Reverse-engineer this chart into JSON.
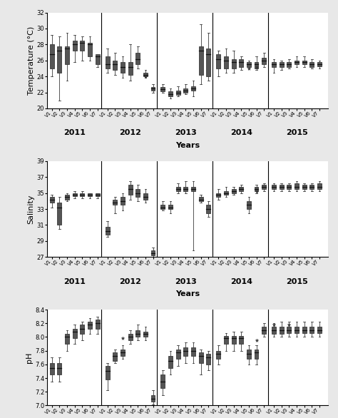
{
  "years": [
    "2011",
    "2012",
    "2013",
    "2014",
    "2015"
  ],
  "stations": [
    "V1",
    "V2",
    "V3",
    "V4",
    "V5",
    "V6",
    "V7"
  ],
  "temperature": {
    "ylabel": "Temperature (°C)",
    "ylim": [
      20,
      32
    ],
    "yticks": [
      20,
      22,
      24,
      26,
      28,
      30,
      32
    ],
    "boxes": [
      {
        "med": 26.8,
        "q1": 25.0,
        "q3": 28.0,
        "whislo": 24.0,
        "whishi": 29.2,
        "fliers": []
      },
      {
        "med": 27.2,
        "q1": 24.5,
        "q3": 27.8,
        "whislo": 21.0,
        "whishi": 29.0,
        "fliers": []
      },
      {
        "med": 27.5,
        "q1": 25.5,
        "q3": 27.8,
        "whislo": 23.5,
        "whishi": 29.5,
        "fliers": []
      },
      {
        "med": 28.0,
        "q1": 27.2,
        "q3": 28.5,
        "whislo": 25.8,
        "whishi": 29.2,
        "fliers": []
      },
      {
        "med": 28.2,
        "q1": 27.2,
        "q3": 28.5,
        "whislo": 26.0,
        "whishi": 29.0,
        "fliers": []
      },
      {
        "med": 28.0,
        "q1": 26.5,
        "q3": 28.2,
        "whislo": 26.0,
        "whishi": 29.0,
        "fliers": []
      },
      {
        "med": 26.5,
        "q1": 25.5,
        "q3": 26.8,
        "whislo": 25.2,
        "whishi": 26.2,
        "fliers": []
      },
      {
        "med": 25.5,
        "q1": 25.0,
        "q3": 26.5,
        "whislo": 24.5,
        "whishi": 27.5,
        "fliers": []
      },
      {
        "med": 25.5,
        "q1": 24.8,
        "q3": 26.0,
        "whislo": 24.2,
        "whishi": 27.0,
        "fliers": []
      },
      {
        "med": 25.2,
        "q1": 24.5,
        "q3": 25.8,
        "whislo": 23.8,
        "whishi": 26.5,
        "fliers": []
      },
      {
        "med": 25.2,
        "q1": 24.2,
        "q3": 25.8,
        "whislo": 23.5,
        "whishi": 28.0,
        "fliers": []
      },
      {
        "med": 26.2,
        "q1": 25.5,
        "q3": 27.0,
        "whislo": 25.0,
        "whishi": 27.8,
        "fliers": []
      },
      {
        "med": 24.2,
        "q1": 24.0,
        "q3": 24.5,
        "whislo": 23.8,
        "whishi": 24.8,
        "fliers": [
          24.0
        ]
      },
      {
        "med": 22.5,
        "q1": 22.2,
        "q3": 22.7,
        "whislo": 22.0,
        "whishi": 23.0,
        "fliers": []
      },
      {
        "med": 22.4,
        "q1": 22.1,
        "q3": 22.7,
        "whislo": 22.0,
        "whishi": 23.0,
        "fliers": []
      },
      {
        "med": 21.8,
        "q1": 21.5,
        "q3": 22.1,
        "whislo": 21.2,
        "whishi": 22.5,
        "fliers": []
      },
      {
        "med": 22.0,
        "q1": 21.7,
        "q3": 22.2,
        "whislo": 21.5,
        "whishi": 22.8,
        "fliers": []
      },
      {
        "med": 22.2,
        "q1": 22.0,
        "q3": 22.5,
        "whislo": 21.8,
        "whishi": 23.0,
        "fliers": []
      },
      {
        "med": 22.5,
        "q1": 22.2,
        "q3": 22.8,
        "whislo": 21.5,
        "whishi": 23.5,
        "fliers": []
      },
      {
        "med": 27.2,
        "q1": 24.2,
        "q3": 27.8,
        "whislo": 23.0,
        "whishi": 30.5,
        "fliers": []
      },
      {
        "med": 26.8,
        "q1": 24.0,
        "q3": 27.5,
        "whislo": 23.5,
        "whishi": 29.5,
        "fliers": []
      },
      {
        "med": 26.2,
        "q1": 25.0,
        "q3": 26.8,
        "whislo": 24.0,
        "whishi": 27.2,
        "fliers": []
      },
      {
        "med": 26.0,
        "q1": 25.0,
        "q3": 26.5,
        "whislo": 24.5,
        "whishi": 27.5,
        "fliers": []
      },
      {
        "med": 25.8,
        "q1": 25.0,
        "q3": 26.2,
        "whislo": 24.5,
        "whishi": 27.2,
        "fliers": []
      },
      {
        "med": 25.8,
        "q1": 25.2,
        "q3": 26.2,
        "whislo": 24.8,
        "whishi": 26.5,
        "fliers": []
      },
      {
        "med": 25.5,
        "q1": 25.2,
        "q3": 25.8,
        "whislo": 25.0,
        "whishi": 26.0,
        "fliers": [
          25.0
        ]
      },
      {
        "med": 25.5,
        "q1": 25.0,
        "q3": 25.8,
        "whislo": 24.8,
        "whishi": 26.5,
        "fliers": [
          25.2
        ]
      },
      {
        "med": 26.0,
        "q1": 25.5,
        "q3": 26.3,
        "whislo": 25.2,
        "whishi": 27.0,
        "fliers": []
      },
      {
        "med": 25.5,
        "q1": 25.2,
        "q3": 25.8,
        "whislo": 24.5,
        "whishi": 26.2,
        "fliers": []
      },
      {
        "med": 25.5,
        "q1": 25.2,
        "q3": 25.8,
        "whislo": 24.8,
        "whishi": 26.0,
        "fliers": []
      },
      {
        "med": 25.5,
        "q1": 25.2,
        "q3": 25.8,
        "whislo": 25.0,
        "whishi": 26.2,
        "fliers": []
      },
      {
        "med": 25.8,
        "q1": 25.5,
        "q3": 26.0,
        "whislo": 25.2,
        "whishi": 26.5,
        "fliers": []
      },
      {
        "med": 25.8,
        "q1": 25.5,
        "q3": 26.0,
        "whislo": 25.2,
        "whishi": 26.5,
        "fliers": []
      },
      {
        "med": 25.5,
        "q1": 25.2,
        "q3": 25.8,
        "whislo": 25.0,
        "whishi": 26.2,
        "fliers": []
      },
      {
        "med": 25.5,
        "q1": 25.3,
        "q3": 25.8,
        "whislo": 25.0,
        "whishi": 26.0,
        "fliers": []
      }
    ]
  },
  "salinity": {
    "ylabel": "Salinity",
    "ylim": [
      27,
      39
    ],
    "yticks": [
      27,
      29,
      31,
      33,
      35,
      37,
      39
    ],
    "boxes": [
      {
        "med": 34.2,
        "q1": 33.8,
        "q3": 34.5,
        "whislo": 33.2,
        "whishi": 34.8,
        "fliers": []
      },
      {
        "med": 33.2,
        "q1": 31.0,
        "q3": 33.8,
        "whislo": 30.5,
        "whishi": 34.5,
        "fliers": []
      },
      {
        "med": 34.5,
        "q1": 34.2,
        "q3": 34.8,
        "whislo": 34.0,
        "whishi": 35.0,
        "fliers": []
      },
      {
        "med": 34.8,
        "q1": 34.6,
        "q3": 35.0,
        "whislo": 34.3,
        "whishi": 35.2,
        "fliers": []
      },
      {
        "med": 34.8,
        "q1": 34.6,
        "q3": 35.0,
        "whislo": 34.3,
        "whishi": 35.2,
        "fliers": []
      },
      {
        "med": 34.8,
        "q1": 34.6,
        "q3": 35.0,
        "whislo": 34.3,
        "whishi": 35.0,
        "fliers": []
      },
      {
        "med": 34.8,
        "q1": 34.6,
        "q3": 35.0,
        "whislo": 34.3,
        "whishi": 35.0,
        "fliers": []
      },
      {
        "med": 30.2,
        "q1": 29.8,
        "q3": 30.8,
        "whislo": 29.5,
        "whishi": 31.5,
        "fliers": []
      },
      {
        "med": 33.8,
        "q1": 33.5,
        "q3": 34.2,
        "whislo": 32.5,
        "whishi": 34.5,
        "fliers": []
      },
      {
        "med": 34.0,
        "q1": 33.5,
        "q3": 34.5,
        "whislo": 32.8,
        "whishi": 35.0,
        "fliers": []
      },
      {
        "med": 35.5,
        "q1": 34.8,
        "q3": 36.0,
        "whislo": 34.2,
        "whishi": 36.5,
        "fliers": []
      },
      {
        "med": 35.0,
        "q1": 34.5,
        "q3": 35.5,
        "whislo": 34.0,
        "whishi": 36.0,
        "fliers": []
      },
      {
        "med": 34.5,
        "q1": 34.2,
        "q3": 35.0,
        "whislo": 33.8,
        "whishi": 35.5,
        "fliers": []
      },
      {
        "med": 27.5,
        "q1": 27.2,
        "q3": 27.8,
        "whislo": 27.0,
        "whishi": 28.2,
        "fliers": []
      },
      {
        "med": 33.2,
        "q1": 33.0,
        "q3": 33.5,
        "whislo": 32.8,
        "whishi": 34.0,
        "fliers": []
      },
      {
        "med": 33.2,
        "q1": 33.0,
        "q3": 33.5,
        "whislo": 32.5,
        "whishi": 34.0,
        "fliers": []
      },
      {
        "med": 35.5,
        "q1": 35.2,
        "q3": 35.8,
        "whislo": 35.0,
        "whishi": 36.2,
        "fliers": []
      },
      {
        "med": 35.5,
        "q1": 35.2,
        "q3": 35.8,
        "whislo": 35.0,
        "whishi": 36.5,
        "fliers": []
      },
      {
        "med": 35.5,
        "q1": 35.2,
        "q3": 35.8,
        "whislo": 27.8,
        "whishi": 36.5,
        "fliers": []
      },
      {
        "med": 34.2,
        "q1": 34.0,
        "q3": 34.5,
        "whislo": 33.8,
        "whishi": 34.8,
        "fliers": []
      },
      {
        "med": 33.0,
        "q1": 32.5,
        "q3": 33.5,
        "whislo": 32.0,
        "whishi": 34.0,
        "fliers": []
      },
      {
        "med": 34.8,
        "q1": 34.5,
        "q3": 35.0,
        "whislo": 34.2,
        "whishi": 35.5,
        "fliers": []
      },
      {
        "med": 35.0,
        "q1": 34.8,
        "q3": 35.2,
        "whislo": 34.5,
        "whishi": 35.8,
        "fliers": []
      },
      {
        "med": 35.2,
        "q1": 35.0,
        "q3": 35.5,
        "whislo": 34.8,
        "whishi": 35.8,
        "fliers": []
      },
      {
        "med": 35.5,
        "q1": 35.2,
        "q3": 35.8,
        "whislo": 35.0,
        "whishi": 36.0,
        "fliers": []
      },
      {
        "med": 33.5,
        "q1": 33.0,
        "q3": 34.0,
        "whislo": 32.5,
        "whishi": 34.5,
        "fliers": []
      },
      {
        "med": 35.5,
        "q1": 35.2,
        "q3": 35.8,
        "whislo": 35.0,
        "whishi": 36.0,
        "fliers": [
          35.2
        ]
      },
      {
        "med": 35.8,
        "q1": 35.5,
        "q3": 36.0,
        "whislo": 35.2,
        "whishi": 36.2,
        "fliers": []
      },
      {
        "med": 35.8,
        "q1": 35.5,
        "q3": 36.0,
        "whislo": 35.2,
        "whishi": 36.2,
        "fliers": []
      },
      {
        "med": 35.8,
        "q1": 35.5,
        "q3": 36.0,
        "whislo": 35.2,
        "whishi": 36.2,
        "fliers": []
      },
      {
        "med": 35.8,
        "q1": 35.5,
        "q3": 36.0,
        "whislo": 35.2,
        "whishi": 36.2,
        "fliers": []
      },
      {
        "med": 35.8,
        "q1": 35.5,
        "q3": 36.2,
        "whislo": 35.2,
        "whishi": 36.5,
        "fliers": []
      },
      {
        "med": 35.8,
        "q1": 35.5,
        "q3": 36.0,
        "whislo": 35.2,
        "whishi": 36.2,
        "fliers": []
      },
      {
        "med": 35.8,
        "q1": 35.5,
        "q3": 36.0,
        "whislo": 35.2,
        "whishi": 36.2,
        "fliers": []
      },
      {
        "med": 35.8,
        "q1": 35.5,
        "q3": 36.2,
        "whislo": 35.2,
        "whishi": 36.5,
        "fliers": []
      }
    ]
  },
  "ph": {
    "ylabel": "pH",
    "ylim": [
      7.0,
      8.4
    ],
    "yticks": [
      7.0,
      7.2,
      7.4,
      7.6,
      7.8,
      8.0,
      8.2,
      8.4
    ],
    "boxes": [
      {
        "med": 7.55,
        "q1": 7.45,
        "q3": 7.62,
        "whislo": 7.35,
        "whishi": 7.7,
        "fliers": []
      },
      {
        "med": 7.55,
        "q1": 7.45,
        "q3": 7.62,
        "whislo": 7.35,
        "whishi": 7.7,
        "fliers": []
      },
      {
        "med": 8.0,
        "q1": 7.9,
        "q3": 8.05,
        "whislo": 7.8,
        "whishi": 8.1,
        "fliers": []
      },
      {
        "med": 8.08,
        "q1": 7.98,
        "q3": 8.12,
        "whislo": 7.9,
        "whishi": 8.18,
        "fliers": []
      },
      {
        "med": 8.12,
        "q1": 8.05,
        "q3": 8.18,
        "whislo": 7.95,
        "whishi": 8.22,
        "fliers": []
      },
      {
        "med": 8.18,
        "q1": 8.12,
        "q3": 8.22,
        "whislo": 8.05,
        "whishi": 8.28,
        "fliers": []
      },
      {
        "med": 8.2,
        "q1": 8.12,
        "q3": 8.25,
        "whislo": 8.05,
        "whishi": 8.3,
        "fliers": []
      },
      {
        "med": 7.5,
        "q1": 7.38,
        "q3": 7.58,
        "whislo": 7.22,
        "whishi": 7.62,
        "fliers": []
      },
      {
        "med": 7.72,
        "q1": 7.65,
        "q3": 7.78,
        "whislo": 7.62,
        "whishi": 7.82,
        "fliers": []
      },
      {
        "med": 7.78,
        "q1": 7.72,
        "q3": 7.82,
        "whislo": 7.68,
        "whishi": 7.88,
        "fliers": [
          7.98
        ]
      },
      {
        "med": 8.0,
        "q1": 7.95,
        "q3": 8.05,
        "whislo": 7.9,
        "whishi": 8.1,
        "fliers": []
      },
      {
        "med": 8.05,
        "q1": 8.0,
        "q3": 8.1,
        "whislo": 7.95,
        "whishi": 8.18,
        "fliers": []
      },
      {
        "med": 8.05,
        "q1": 8.0,
        "q3": 8.08,
        "whislo": 7.95,
        "whishi": 8.15,
        "fliers": []
      },
      {
        "med": 7.1,
        "q1": 7.06,
        "q3": 7.15,
        "whislo": 7.02,
        "whishi": 7.22,
        "fliers": []
      },
      {
        "med": 7.35,
        "q1": 7.25,
        "q3": 7.45,
        "whislo": 7.15,
        "whishi": 7.52,
        "fliers": []
      },
      {
        "med": 7.65,
        "q1": 7.55,
        "q3": 7.72,
        "whislo": 7.45,
        "whishi": 7.8,
        "fliers": []
      },
      {
        "med": 7.78,
        "q1": 7.68,
        "q3": 7.82,
        "whislo": 7.58,
        "whishi": 7.88,
        "fliers": []
      },
      {
        "med": 7.8,
        "q1": 7.72,
        "q3": 7.85,
        "whislo": 7.62,
        "whishi": 7.92,
        "fliers": []
      },
      {
        "med": 7.8,
        "q1": 7.72,
        "q3": 7.85,
        "whislo": 7.62,
        "whishi": 7.92,
        "fliers": []
      },
      {
        "med": 7.72,
        "q1": 7.62,
        "q3": 7.78,
        "whislo": 7.45,
        "whishi": 7.82,
        "fliers": []
      },
      {
        "med": 7.7,
        "q1": 7.6,
        "q3": 7.75,
        "whislo": 7.52,
        "whishi": 7.8,
        "fliers": []
      },
      {
        "med": 7.75,
        "q1": 7.68,
        "q3": 7.8,
        "whislo": 7.6,
        "whishi": 7.88,
        "fliers": []
      },
      {
        "med": 7.98,
        "q1": 7.9,
        "q3": 8.02,
        "whislo": 7.8,
        "whishi": 8.06,
        "fliers": []
      },
      {
        "med": 7.98,
        "q1": 7.9,
        "q3": 8.02,
        "whislo": 7.8,
        "whishi": 8.08,
        "fliers": []
      },
      {
        "med": 7.98,
        "q1": 7.9,
        "q3": 8.02,
        "whislo": 7.8,
        "whishi": 8.08,
        "fliers": []
      },
      {
        "med": 7.75,
        "q1": 7.68,
        "q3": 7.82,
        "whislo": 7.6,
        "whishi": 7.88,
        "fliers": []
      },
      {
        "med": 7.78,
        "q1": 7.68,
        "q3": 7.82,
        "whislo": 7.6,
        "whishi": 7.88,
        "fliers": [
          7.95
        ]
      },
      {
        "med": 8.1,
        "q1": 8.05,
        "q3": 8.15,
        "whislo": 8.0,
        "whishi": 8.2,
        "fliers": []
      },
      {
        "med": 8.1,
        "q1": 8.05,
        "q3": 8.15,
        "whislo": 8.0,
        "whishi": 8.2,
        "fliers": [
          8.18
        ]
      },
      {
        "med": 8.1,
        "q1": 8.05,
        "q3": 8.15,
        "whislo": 8.0,
        "whishi": 8.22,
        "fliers": []
      },
      {
        "med": 8.1,
        "q1": 8.06,
        "q3": 8.15,
        "whislo": 8.0,
        "whishi": 8.22,
        "fliers": [
          8.18
        ]
      },
      {
        "med": 8.1,
        "q1": 8.06,
        "q3": 8.15,
        "whislo": 8.0,
        "whishi": 8.22,
        "fliers": []
      },
      {
        "med": 8.1,
        "q1": 8.06,
        "q3": 8.15,
        "whislo": 8.0,
        "whishi": 8.22,
        "fliers": []
      },
      {
        "med": 8.1,
        "q1": 8.06,
        "q3": 8.15,
        "whislo": 8.0,
        "whishi": 8.22,
        "fliers": []
      },
      {
        "med": 8.1,
        "q1": 8.06,
        "q3": 8.15,
        "whislo": 8.0,
        "whishi": 8.22,
        "fliers": []
      }
    ]
  },
  "box_color": "#3a3a3a",
  "box_facecolor": "#555555",
  "whisker_color": "#3a3a3a",
  "median_color": "#111111",
  "flier_marker": "*",
  "flier_color": "#333333",
  "background_color": "#e8e8e8",
  "panel_bg": "#ffffff",
  "ylabel_fontsize": 8,
  "xlabel_fontsize": 8,
  "tick_fontsize": 6,
  "station_tick_fontsize": 5,
  "year_label_fontsize": 8
}
